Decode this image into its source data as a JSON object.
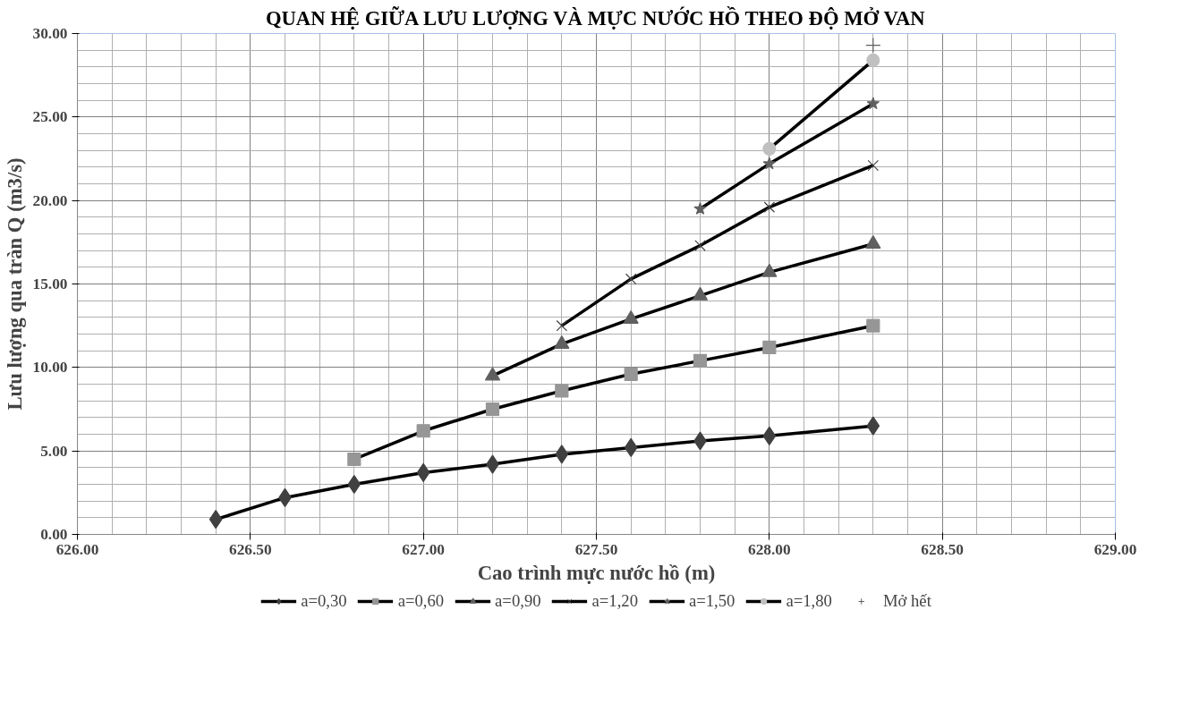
{
  "chart_data": {
    "type": "line",
    "title": "QUAN HỆ GIỮA LƯU LƯỢNG VÀ MỰC NƯỚC HỒ THEO ĐỘ MỞ VAN",
    "xlabel": "Cao trình mực nước hồ (m)",
    "ylabel": "Lưu lượng qua tràn Q (m3/s)",
    "xlim": [
      626,
      629
    ],
    "xticks": [
      {
        "value": 626,
        "label": "626.00"
      },
      {
        "value": 626.5,
        "label": "626.50"
      },
      {
        "value": 627,
        "label": "627.00"
      },
      {
        "value": 627.5,
        "label": "627.50"
      },
      {
        "value": 628,
        "label": "628.00"
      },
      {
        "value": 628.5,
        "label": "628.50"
      },
      {
        "value": 629,
        "label": "629.00"
      }
    ],
    "ylim": [
      0,
      30
    ],
    "yticks": [
      {
        "value": 0,
        "label": "0.00"
      },
      {
        "value": 5,
        "label": "5.00"
      },
      {
        "value": 10,
        "label": "10.00"
      },
      {
        "value": 15,
        "label": "15.00"
      },
      {
        "value": 20,
        "label": "20.00"
      },
      {
        "value": 25,
        "label": "25.00"
      },
      {
        "value": 30,
        "label": "30.00"
      }
    ],
    "grid": true,
    "legend": "bottom",
    "series": [
      {
        "name": "a=0,30",
        "color": "#404040",
        "marker": "diamond",
        "x": [
          626.4,
          626.6,
          626.8,
          627.0,
          627.2,
          627.4,
          627.6,
          627.8,
          628.0,
          628.3
        ],
        "values": [
          0.9,
          2.2,
          3.0,
          3.7,
          4.2,
          4.8,
          5.2,
          5.6,
          5.9,
          6.5
        ]
      },
      {
        "name": "a=0,60",
        "color": "#969696",
        "marker": "square",
        "x": [
          626.8,
          627.0,
          627.2,
          627.4,
          627.6,
          627.8,
          628.0,
          628.3
        ],
        "values": [
          4.5,
          6.2,
          7.5,
          8.6,
          9.6,
          10.4,
          11.2,
          12.5
        ]
      },
      {
        "name": "a=0,90",
        "color": "#606060",
        "marker": "triangle",
        "x": [
          627.2,
          627.4,
          627.6,
          627.8,
          628.0,
          628.3
        ],
        "values": [
          9.5,
          11.4,
          12.9,
          14.3,
          15.7,
          17.4
        ]
      },
      {
        "name": "a=1,20",
        "color": "#404040",
        "marker": "x",
        "x": [
          627.4,
          627.6,
          627.8,
          628.0,
          628.3
        ],
        "values": [
          12.5,
          15.3,
          17.3,
          19.6,
          22.1
        ]
      },
      {
        "name": "a=1,50",
        "color": "#606060",
        "marker": "star",
        "x": [
          627.8,
          628.0,
          628.3
        ],
        "values": [
          19.5,
          22.2,
          25.8
        ]
      },
      {
        "name": "a=1,80",
        "color": "#c0c0c0",
        "marker": "circle",
        "x": [
          628.0,
          628.3
        ],
        "values": [
          23.1,
          28.4
        ]
      },
      {
        "name": "Mở hết",
        "color": "#606060",
        "marker": "cross",
        "x": [
          628.3
        ],
        "values": [
          29.3
        ]
      }
    ]
  }
}
